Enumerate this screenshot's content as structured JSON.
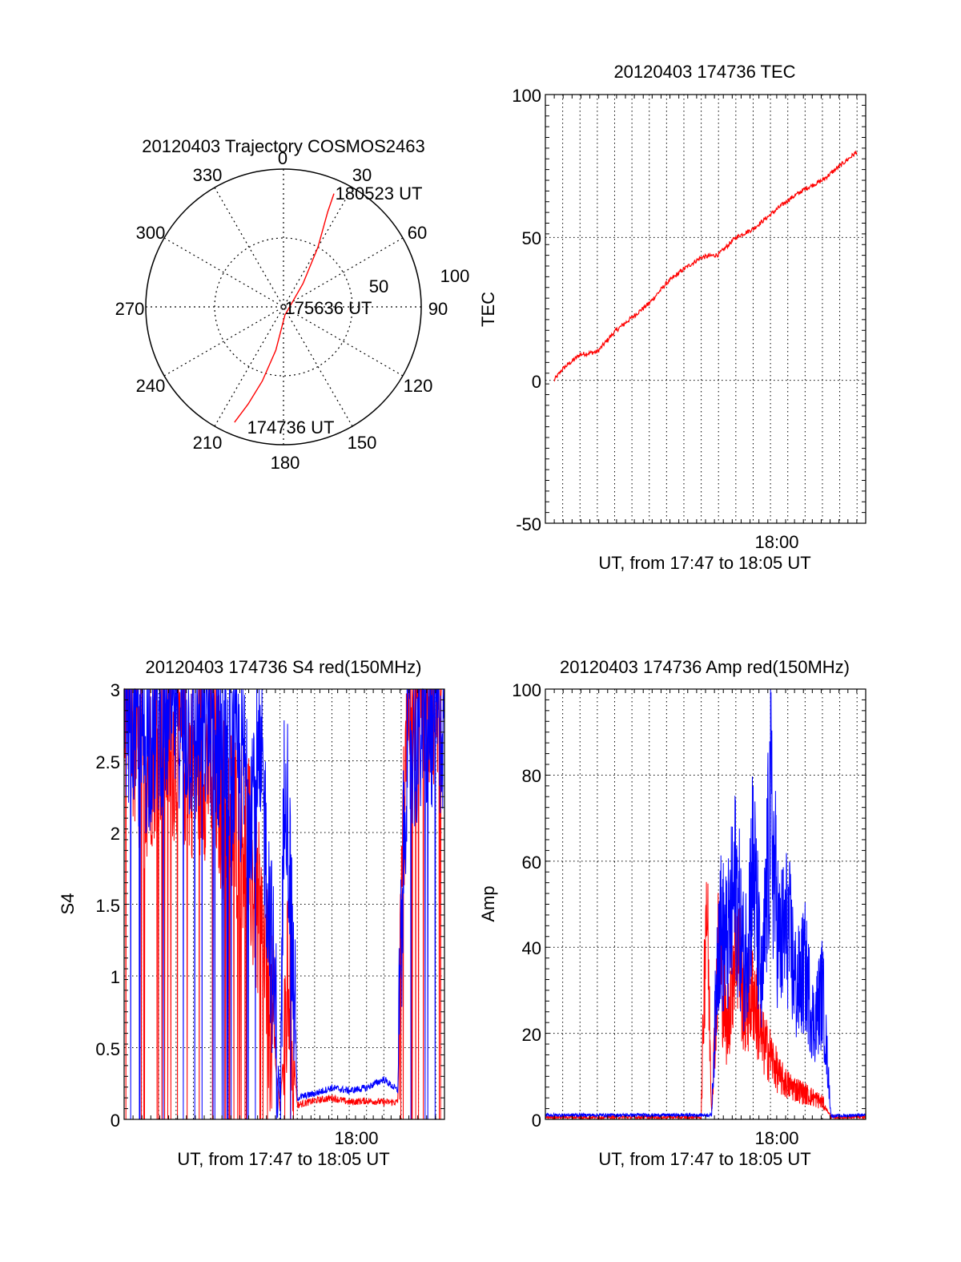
{
  "chart_data": [
    {
      "type": "polar",
      "title": "20120403 Trajectory COSMOS2463",
      "angle_ticks": [
        "0",
        "30",
        "60",
        "90",
        "120",
        "150",
        "180",
        "210",
        "240",
        "270",
        "300",
        "330"
      ],
      "radius_ticks": [
        "50",
        "100"
      ],
      "trajectory": {
        "color": "#ff0000",
        "points": [
          {
            "az": 203,
            "el": 9
          },
          {
            "az": 200,
            "el": 25
          },
          {
            "az": 196,
            "el": 44
          },
          {
            "az": 190,
            "el": 68
          },
          {
            "az": 170,
            "el": 94
          },
          {
            "az": 40,
            "el": 78
          },
          {
            "az": 30,
            "el": 50
          },
          {
            "az": 25,
            "el": 24
          },
          {
            "az": 24,
            "el": 10
          }
        ]
      },
      "annotations": [
        {
          "text": "180523 UT",
          "at": "end"
        },
        {
          "text": "175636 UT",
          "at": "zenith"
        },
        {
          "text": "174736 UT",
          "at": "start"
        }
      ]
    },
    {
      "type": "line",
      "title": "20120403 174736 TEC",
      "ylabel": "TEC",
      "xlabel": "UT, from 17:47 to 18:05 UT",
      "xtick_label": "18:00",
      "ylim": [
        -50,
        100
      ],
      "yticks": [
        "100",
        "50",
        "0",
        "-50"
      ],
      "series": [
        {
          "color": "#ff0000",
          "x_minutes": [
            0.5,
            1,
            2,
            3,
            4,
            5,
            6,
            7,
            8,
            9,
            10,
            11,
            12,
            13,
            14,
            15,
            16,
            17,
            18
          ],
          "y": [
            0,
            4,
            9,
            10,
            17,
            22,
            27,
            34,
            39,
            43,
            44,
            50,
            53,
            58,
            63,
            67,
            70,
            75,
            80
          ]
        }
      ]
    },
    {
      "type": "line",
      "title": "20120403 174736 S4 red(150MHz)",
      "ylabel": "S4",
      "xlabel": "UT, from 17:47 to 18:05 UT",
      "xtick_label": "18:00",
      "ylim": [
        0,
        3
      ],
      "yticks": [
        "3",
        "2.5",
        "2",
        "1.5",
        "1",
        "0.5",
        "0"
      ],
      "series": [
        {
          "color": "#0000ff",
          "x_minutes": [
            0,
            1,
            2,
            3,
            4,
            5,
            6,
            8,
            9,
            9.3,
            10,
            11,
            12,
            13,
            14,
            15,
            15.8,
            16.3,
            17,
            18
          ],
          "y": [
            3,
            2.6,
            2.8,
            2.9,
            2.7,
            2.8,
            2.5,
            2.3,
            0.15,
            2.7,
            0.15,
            0.18,
            0.22,
            0.2,
            0.22,
            0.28,
            0.2,
            2.6,
            2.7,
            2.8
          ]
        },
        {
          "color": "#ff0000",
          "x_minutes": [
            0,
            1,
            2,
            3,
            4,
            5,
            6,
            7,
            8,
            9,
            9.5,
            10,
            11,
            12,
            13,
            14,
            15,
            15.8,
            16.3,
            17,
            18
          ],
          "y": [
            3,
            2.4,
            2.7,
            2.6,
            2.5,
            2.5,
            2.1,
            2.0,
            1.2,
            0.09,
            1.0,
            0.1,
            0.13,
            0.15,
            0.12,
            0.13,
            0.12,
            0.12,
            3,
            3,
            3
          ]
        }
      ]
    },
    {
      "type": "line",
      "title": "20120403 174736 Amp red(150MHz)",
      "ylabel": "Amp",
      "xlabel": "UT, from 17:47 to 18:05 UT",
      "xtick_label": "18:00",
      "ylim": [
        0,
        100
      ],
      "yticks": [
        "100",
        "80",
        "60",
        "40",
        "20",
        "0"
      ],
      "series": [
        {
          "color": "#0000ff",
          "x_minutes": [
            0,
            4,
            8,
            9.3,
            9.6,
            10,
            10.5,
            11,
            11.5,
            12,
            12.5,
            13,
            13.5,
            14,
            14.5,
            15,
            15.5,
            16,
            16.5,
            17,
            18
          ],
          "y": [
            1,
            1,
            1,
            1,
            1,
            45,
            40,
            55,
            35,
            60,
            28,
            72,
            40,
            45,
            30,
            35,
            22,
            30,
            0.8,
            0.8,
            1
          ]
        },
        {
          "color": "#ff0000",
          "x_minutes": [
            0,
            4,
            8,
            9,
            9.3,
            9.6,
            10,
            10.5,
            11,
            11.5,
            12,
            12.5,
            13,
            13.5,
            14,
            14.5,
            15,
            15.5,
            16,
            16.5,
            17,
            18
          ],
          "y": [
            0.5,
            0.5,
            0.5,
            0.5,
            55,
            2,
            40,
            20,
            45,
            25,
            30,
            18,
            15,
            10,
            8,
            7,
            6,
            5,
            4,
            0.5,
            0.5,
            0.5
          ]
        }
      ]
    }
  ]
}
